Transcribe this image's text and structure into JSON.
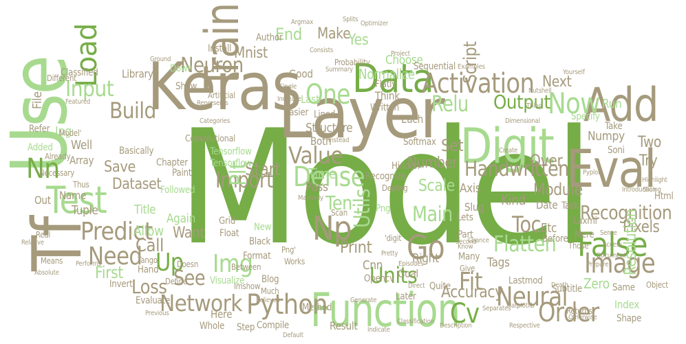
{
  "colors": {
    "green": "#76ad47",
    "light_green": "#a7da8f",
    "taupe": "#a59a7c",
    "background": "#ffffff"
  },
  "words": [
    {
      "text": "Model",
      "color": "green"
    },
    {
      "text": "Keras",
      "color": "taupe"
    },
    {
      "text": "Layer",
      "color": "taupe"
    },
    {
      "text": "Use",
      "color": "light_green"
    },
    {
      "text": "Tf",
      "color": "taupe"
    },
    {
      "text": "Data",
      "color": "green"
    },
    {
      "text": "Digit",
      "color": "light_green"
    },
    {
      "text": "Train",
      "color": "taupe"
    },
    {
      "text": "Add",
      "color": "taupe"
    },
    {
      "text": "Eval",
      "color": "taupe"
    },
    {
      "text": "Load",
      "color": "green"
    },
    {
      "text": "Test",
      "color": "light_green"
    },
    {
      "text": "Function",
      "color": "light_green"
    },
    {
      "text": "Python",
      "color": "taupe"
    },
    {
      "text": "Network",
      "color": "taupe"
    },
    {
      "text": "Neural",
      "color": "taupe"
    },
    {
      "text": "False",
      "color": "green"
    },
    {
      "text": "Image",
      "color": "taupe"
    },
    {
      "text": "Order",
      "color": "taupe"
    },
    {
      "text": "Nn",
      "color": "green"
    },
    {
      "text": "Predict",
      "color": "taupe"
    },
    {
      "text": "Now",
      "color": "light_green"
    },
    {
      "text": "Go",
      "color": "taupe"
    },
    {
      "text": "Np",
      "color": "taupe"
    },
    {
      "text": "Activation",
      "color": "taupe"
    },
    {
      "text": "One",
      "color": "light_green"
    },
    {
      "text": "Img",
      "color": "light_green"
    },
    {
      "text": "Up",
      "color": "green"
    },
    {
      "text": "Need",
      "color": "taupe"
    },
    {
      "text": "Import",
      "color": "taupe"
    },
    {
      "text": "Dense",
      "color": "light_green"
    },
    {
      "text": "Value",
      "color": "taupe"
    },
    {
      "text": "Plt",
      "color": "light_green"
    },
    {
      "text": "Build",
      "color": "taupe"
    },
    {
      "text": "Input",
      "color": "light_green"
    },
    {
      "text": "Neuron",
      "color": "taupe"
    },
    {
      "text": "Handwritten",
      "color": "taupe"
    },
    {
      "text": "Recognition",
      "color": "taupe"
    },
    {
      "text": "Flatten",
      "color": "light_green"
    },
    {
      "text": "Fit",
      "color": "taupe"
    },
    {
      "text": "Loss",
      "color": "taupe"
    },
    {
      "text": "Units",
      "color": "green"
    },
    {
      "text": "Accuracy",
      "color": "taupe"
    },
    {
      "text": "Cv",
      "color": "green"
    },
    {
      "text": "See",
      "color": "taupe"
    },
    {
      "text": "First",
      "color": "light_green"
    },
    {
      "text": "Call",
      "color": "taupe"
    },
    {
      "text": "Start",
      "color": "taupe"
    },
    {
      "text": "Relu",
      "color": "light_green"
    },
    {
      "text": "Output",
      "color": "green"
    },
    {
      "text": "Toc",
      "color": "taupe"
    },
    {
      "text": "Utils",
      "color": "light_green"
    },
    {
      "text": "Main",
      "color": "light_green"
    },
    {
      "text": "Ten",
      "color": "light_green"
    },
    {
      "text": "Print",
      "color": "taupe"
    },
    {
      "text": "Dataset",
      "color": "taupe"
    },
    {
      "text": "Save",
      "color": "taupe"
    },
    {
      "text": "Pixels",
      "color": "taupe"
    },
    {
      "text": "Zero",
      "color": "light_green"
    },
    {
      "text": "Scale",
      "color": "light_green"
    },
    {
      "text": "Number",
      "color": "taupe"
    },
    {
      "text": "Set",
      "color": "taupe"
    },
    {
      "text": "Script",
      "color": "taupe"
    },
    {
      "text": "Mnist",
      "color": "taupe"
    },
    {
      "text": "End",
      "color": "light_green"
    },
    {
      "text": "Make",
      "color": "taupe"
    },
    {
      "text": "Yes",
      "color": "light_green"
    },
    {
      "text": "Normalize",
      "color": "light_green"
    },
    {
      "text": "Choose",
      "color": "light_green"
    },
    {
      "text": "Numpy",
      "color": "taupe"
    },
    {
      "text": "Next",
      "color": "taupe"
    },
    {
      "text": "Module",
      "color": "taupe"
    },
    {
      "text": "Try",
      "color": "taupe"
    },
    {
      "text": "Two",
      "color": "taupe"
    },
    {
      "text": "Over",
      "color": "taupe"
    },
    {
      "text": "Resolution",
      "color": "light_green"
    },
    {
      "text": "Want",
      "color": "taupe"
    },
    {
      "text": "Allow",
      "color": "light_green"
    },
    {
      "text": "Again",
      "color": "light_green"
    },
    {
      "text": "Title",
      "color": "light_green"
    },
    {
      "text": "Grid",
      "color": "taupe"
    },
    {
      "text": "Float",
      "color": "taupe"
    },
    {
      "text": "Format",
      "color": "taupe"
    },
    {
      "text": "Black",
      "color": "taupe"
    },
    {
      "text": "Convolutional",
      "color": "taupe"
    },
    {
      "text": "Tensorflow",
      "color": "light_green"
    },
    {
      "text": "Structure",
      "color": "taupe"
    },
    {
      "text": "Library",
      "color": "taupe"
    },
    {
      "text": "Classified",
      "color": "taupe"
    },
    {
      "text": "Jpg",
      "color": "light_green"
    },
    {
      "text": "File",
      "color": "taupe"
    },
    {
      "text": "Well",
      "color": "taupe"
    },
    {
      "text": "Array",
      "color": "taupe"
    },
    {
      "text": "Tuple",
      "color": "taupe"
    },
    {
      "text": "Name",
      "color": "taupe"
    },
    {
      "text": "Out",
      "color": "taupe"
    },
    {
      "text": "Added",
      "color": "light_green"
    },
    {
      "text": "Refer",
      "color": "taupe"
    },
    {
      "text": "Chapter",
      "color": "taupe"
    },
    {
      "text": "Paint",
      "color": "taupe"
    },
    {
      "text": "Hand",
      "color": "taupe"
    },
    {
      "text": "Define",
      "color": "taupe"
    },
    {
      "text": "Visualize",
      "color": "light_green"
    },
    {
      "text": "Evaluate",
      "color": "taupe"
    },
    {
      "text": "Invert",
      "color": "taupe"
    },
    {
      "text": "Here",
      "color": "taupe"
    },
    {
      "text": "Whole",
      "color": "taupe"
    },
    {
      "text": "Step",
      "color": "taupe"
    },
    {
      "text": "Compile",
      "color": "taupe"
    },
    {
      "text": "Result",
      "color": "taupe"
    },
    {
      "text": "Method",
      "color": "taupe"
    },
    {
      "text": "Goal",
      "color": "taupe"
    },
    {
      "text": "Right",
      "color": "taupe"
    },
    {
      "text": "Tags",
      "color": "taupe"
    },
    {
      "text": "Kind",
      "color": "taupe"
    },
    {
      "text": "Etc",
      "color": "taupe"
    },
    {
      "text": "Date",
      "color": "taupe"
    },
    {
      "text": "Task",
      "color": "taupe"
    },
    {
      "text": "Time",
      "color": "light_green"
    },
    {
      "text": "Pass",
      "color": "taupe"
    },
    {
      "text": "Axis",
      "color": "taupe"
    },
    {
      "text": "Slug",
      "color": "taupe"
    },
    {
      "text": "Lets",
      "color": "taupe"
    },
    {
      "text": "Png",
      "color": "light_green"
    },
    {
      "text": "Cnn",
      "color": "taupe"
    },
    {
      "text": "Opencv",
      "color": "taupe"
    },
    {
      "text": "Many",
      "color": "taupe"
    },
    {
      "text": "Give",
      "color": "taupe"
    },
    {
      "text": "Part",
      "color": "taupe"
    },
    {
      "text": "Lastmod",
      "color": "taupe"
    },
    {
      "text": "Subtitle",
      "color": "taupe"
    },
    {
      "text": "Same",
      "color": "taupe"
    },
    {
      "text": "Index",
      "color": "light_green"
    },
    {
      "text": "Shape",
      "color": "taupe"
    },
    {
      "text": "Returns",
      "color": "taupe"
    },
    {
      "text": "Object",
      "color": "taupe"
    },
    {
      "text": "Html",
      "color": "taupe"
    },
    {
      "text": "Run",
      "color": "light_green"
    },
    {
      "text": "Take",
      "color": "taupe"
    },
    {
      "text": "Soni",
      "color": "taupe"
    },
    {
      "text": "Laxmi",
      "color": "taupe"
    },
    {
      "text": "Mere",
      "color": "taupe"
    },
    {
      "text": "Those",
      "color": "taupe"
    },
    {
      "text": "Before",
      "color": "taupe"
    },
    {
      "text": "Softmax",
      "color": "taupe"
    },
    {
      "text": "Hidden",
      "color": "taupe"
    },
    {
      "text": "Recognize",
      "color": "taupe"
    },
    {
      "text": "Dealing",
      "color": "taupe"
    },
    {
      "text": "Each",
      "color": "taupe"
    },
    {
      "text": "Both",
      "color": "taupe"
    },
    {
      "text": "Lined",
      "color": "taupe"
    },
    {
      "text": "Good",
      "color": "taupe"
    },
    {
      "text": "Last",
      "color": "light_green"
    },
    {
      "text": "Easier",
      "color": "taupe"
    },
    {
      "text": "Install",
      "color": "taupe"
    },
    {
      "text": "Author",
      "color": "taupe"
    },
    {
      "text": "Down",
      "color": "light_green"
    },
    {
      "text": "Show",
      "color": "taupe"
    },
    {
      "text": "Think",
      "color": "taupe"
    },
    {
      "text": "Written",
      "color": "taupe"
    },
    {
      "text": "Flatly",
      "color": "taupe"
    },
    {
      "text": "Sequential",
      "color": "taupe"
    },
    {
      "text": "Probability",
      "color": "taupe"
    },
    {
      "text": "Different",
      "color": "taupe"
    },
    {
      "text": "Thus",
      "color": "taupe"
    },
    {
      "text": "Necessary",
      "color": "taupe"
    },
    {
      "text": "Basically",
      "color": "taupe"
    },
    {
      "text": "Followed",
      "color": "light_green"
    },
    {
      "text": "Between",
      "color": "taupe"
    },
    {
      "text": "Blog",
      "color": "taupe"
    },
    {
      "text": "Doesn",
      "color": "taupe"
    },
    {
      "text": "New",
      "color": "light_green"
    },
    {
      "text": "Much",
      "color": "taupe"
    },
    {
      "text": "Quite",
      "color": "taupe"
    },
    {
      "text": "Works",
      "color": "taupe"
    },
    {
      "text": "Later",
      "color": "taupe"
    },
    {
      "text": "Ground",
      "color": "taupe"
    },
    {
      "text": "Means",
      "color": "taupe"
    },
    {
      "text": "Artificial",
      "color": "taupe"
    },
    {
      "text": "Categories",
      "color": "taupe"
    },
    {
      "text": "Access",
      "color": "taupe"
    },
    {
      "text": "Document",
      "color": "taupe"
    },
    {
      "text": "Sense",
      "color": "taupe"
    },
    {
      "text": "Second",
      "color": "taupe"
    },
    {
      "text": "Know",
      "color": "taupe"
    },
    {
      "text": "Chance",
      "color": "taupe"
    },
    {
      "text": "Examples",
      "color": "taupe"
    },
    {
      "text": "Increase",
      "color": "taupe"
    },
    {
      "text": "Single",
      "color": "taupe"
    },
    {
      "text": "Scan",
      "color": "taupe"
    },
    {
      "text": "Pretty",
      "color": "taupe"
    },
    {
      "text": "Manually",
      "color": "taupe"
    },
    {
      "text": "Instead",
      "color": "taupe"
    },
    {
      "text": "Tensorflow",
      "color": "light_green"
    },
    {
      "text": "Dimensional",
      "color": "taupe"
    },
    {
      "text": "Slicing",
      "color": "taupe"
    },
    {
      "text": "Pyplot",
      "color": "taupe"
    },
    {
      "text": "Prepare",
      "color": "taupe"
    },
    {
      "text": "Introduction",
      "color": "taupe"
    },
    {
      "text": "Tango",
      "color": "taupe"
    },
    {
      "text": "Real",
      "color": "taupe"
    },
    {
      "text": "Relative",
      "color": "taupe"
    },
    {
      "text": "Absolute",
      "color": "taupe"
    },
    {
      "text": "Performs",
      "color": "taupe"
    },
    {
      "text": "Previous",
      "color": "taupe"
    },
    {
      "text": "Imshow",
      "color": "taupe"
    },
    {
      "text": "Believes",
      "color": "taupe"
    },
    {
      "text": "Default",
      "color": "taupe"
    },
    {
      "text": "Generate",
      "color": "taupe"
    },
    {
      "text": "Indicate",
      "color": "taupe"
    },
    {
      "text": "Classification",
      "color": "taupe"
    },
    {
      "text": "Description",
      "color": "taupe"
    },
    {
      "text": "Respective",
      "color": "taupe"
    },
    {
      "text": "Otherwise",
      "color": "taupe"
    },
    {
      "text": "Death",
      "color": "taupe"
    },
    {
      "text": "Matplotlib",
      "color": "taupe"
    },
    {
      "text": "Separates",
      "color": "taupe"
    },
    {
      "text": "Episodes",
      "color": "taupe"
    },
    {
      "text": "Direct",
      "color": "taupe"
    },
    {
      "text": "Splits",
      "color": "taupe"
    },
    {
      "text": "Optimizer",
      "color": "taupe"
    },
    {
      "text": "Argmax",
      "color": "taupe"
    },
    {
      "text": "Project",
      "color": "taupe"
    },
    {
      "text": "Consists",
      "color": "taupe"
    },
    {
      "text": "Summary",
      "color": "taupe"
    },
    {
      "text": "Featured",
      "color": "taupe"
    },
    {
      "text": "Represents",
      "color": "taupe"
    },
    {
      "text": "Nutshell",
      "color": "taupe"
    },
    {
      "text": "Yourself",
      "color": "taupe"
    },
    {
      "text": "Highlight",
      "color": "taupe"
    },
    {
      "text": "Already",
      "color": "taupe"
    },
    {
      "text": "Model'",
      "color": "taupe"
    },
    {
      "text": "Png'",
      "color": "taupe"
    },
    {
      "text": "'digit",
      "color": "taupe"
    },
    {
      "text": "Specify",
      "color": "light_green"
    },
    {
      "text": "Create",
      "color": "taupe"
    },
    {
      "text": "Thing",
      "color": "taupe"
    }
  ]
}
